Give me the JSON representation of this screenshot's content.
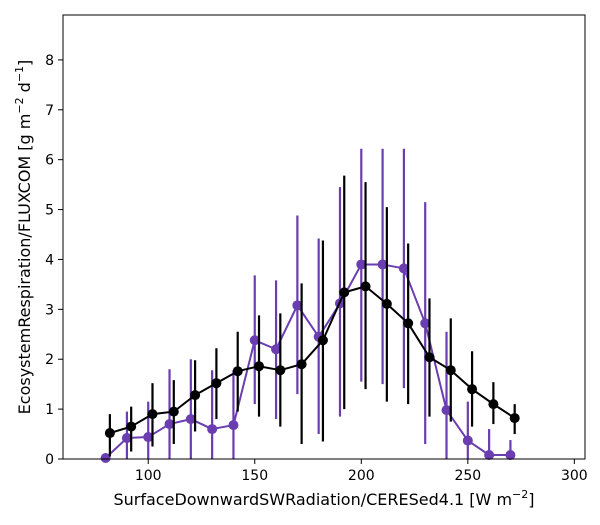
{
  "chart_data": {
    "type": "line",
    "title": "",
    "xlabel_main": "SurfaceDownwardSWRadiation/CERESed4.1 [W m",
    "xlabel_sup": "−2",
    "xlabel_end": "]",
    "ylabel_main": "EcosystemRespiration/FLUXCOM [g m",
    "ylabel_sup1": "−2",
    "ylabel_mid": " d",
    "ylabel_sup2": "−1",
    "ylabel_end": "]",
    "xlim": [
      60,
      305
    ],
    "ylim": [
      0,
      8.9
    ],
    "xticks": [
      100,
      150,
      200,
      250,
      300
    ],
    "yticks": [
      0,
      1,
      2,
      3,
      4,
      5,
      6,
      7,
      8
    ],
    "grid": false,
    "series": [
      {
        "color": "#6a3db0",
        "x": [
          80,
          90,
          100,
          110,
          120,
          130,
          140,
          150,
          160,
          170,
          180,
          190,
          200,
          210,
          220,
          230,
          240,
          250,
          260,
          270
        ],
        "y": [
          0.02,
          0.42,
          0.44,
          0.7,
          0.8,
          0.6,
          0.68,
          2.38,
          2.2,
          3.08,
          2.45,
          3.12,
          3.9,
          3.9,
          3.82,
          2.72,
          0.98,
          0.37,
          0.08,
          0.08
        ],
        "err_low": [
          0.0,
          0.0,
          0.0,
          0.0,
          0.0,
          0.0,
          0.0,
          1.1,
          0.8,
          1.3,
          0.5,
          0.85,
          1.55,
          1.5,
          1.42,
          0.3,
          0.0,
          0.0,
          0.0,
          0.0
        ],
        "err_high": [
          0.02,
          0.95,
          1.15,
          1.8,
          2.0,
          1.78,
          1.78,
          3.68,
          3.58,
          4.88,
          4.42,
          5.45,
          6.22,
          6.22,
          6.22,
          5.15,
          2.55,
          1.15,
          0.6,
          0.38
        ]
      },
      {
        "color": "#000000",
        "x": [
          82,
          92,
          102,
          112,
          122,
          132,
          142,
          152,
          162,
          172,
          182,
          192,
          202,
          212,
          222,
          232,
          242,
          252,
          262,
          272
        ],
        "y": [
          0.52,
          0.65,
          0.9,
          0.95,
          1.28,
          1.52,
          1.76,
          1.86,
          1.78,
          1.9,
          2.38,
          3.34,
          3.46,
          3.11,
          2.72,
          2.04,
          1.78,
          1.4,
          1.1,
          0.82
        ],
        "err_low": [
          0.05,
          0.15,
          0.25,
          0.3,
          0.55,
          0.8,
          0.95,
          0.85,
          0.65,
          0.3,
          0.35,
          1.0,
          1.4,
          1.15,
          1.1,
          0.85,
          0.75,
          0.65,
          0.7,
          0.5
        ],
        "err_high": [
          0.9,
          1.05,
          1.52,
          1.58,
          1.98,
          2.22,
          2.55,
          2.88,
          2.92,
          3.52,
          4.38,
          5.68,
          5.55,
          5.05,
          4.32,
          3.22,
          2.82,
          2.16,
          1.54,
          1.1
        ]
      }
    ]
  }
}
